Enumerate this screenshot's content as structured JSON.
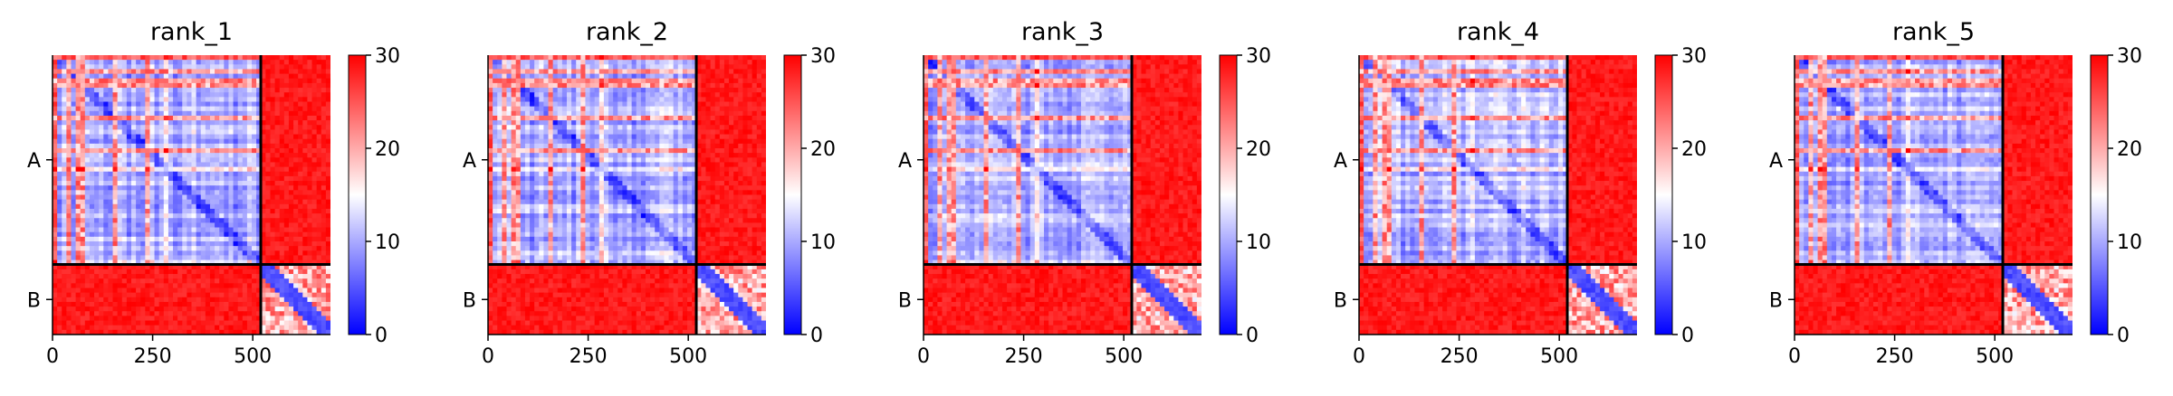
{
  "chart_data": [
    {
      "type": "heatmap",
      "title": "rank_1",
      "chains": [
        "A",
        "B"
      ],
      "chain_lengths": [
        520,
        174
      ],
      "xticks": [
        0,
        250,
        500
      ],
      "colorbar": {
        "range": [
          0,
          30
        ],
        "ticks": [
          0,
          10,
          20,
          30
        ],
        "colormap": "bwr"
      },
      "seed": 11
    },
    {
      "type": "heatmap",
      "title": "rank_2",
      "chains": [
        "A",
        "B"
      ],
      "chain_lengths": [
        520,
        174
      ],
      "xticks": [
        0,
        250,
        500
      ],
      "colorbar": {
        "range": [
          0,
          30
        ],
        "ticks": [
          0,
          10,
          20,
          30
        ],
        "colormap": "bwr"
      },
      "seed": 23
    },
    {
      "type": "heatmap",
      "title": "rank_3",
      "chains": [
        "A",
        "B"
      ],
      "chain_lengths": [
        520,
        174
      ],
      "xticks": [
        0,
        250,
        500
      ],
      "colorbar": {
        "range": [
          0,
          30
        ],
        "ticks": [
          0,
          10,
          20,
          30
        ],
        "colormap": "bwr"
      },
      "seed": 37
    },
    {
      "type": "heatmap",
      "title": "rank_4",
      "chains": [
        "A",
        "B"
      ],
      "chain_lengths": [
        520,
        174
      ],
      "xticks": [
        0,
        250,
        500
      ],
      "colorbar": {
        "range": [
          0,
          30
        ],
        "ticks": [
          0,
          10,
          20,
          30
        ],
        "colormap": "bwr"
      },
      "seed": 41
    },
    {
      "type": "heatmap",
      "title": "rank_5",
      "chains": [
        "A",
        "B"
      ],
      "chain_lengths": [
        520,
        174
      ],
      "xticks": [
        0,
        250,
        500
      ],
      "colorbar": {
        "range": [
          0,
          30
        ],
        "ticks": [
          0,
          10,
          20,
          30
        ],
        "colormap": "bwr"
      },
      "seed": 53
    }
  ],
  "colors": {
    "low": "#0000ff",
    "mid": "#ffffff",
    "high": "#ff0000",
    "boundary": "#000000"
  }
}
